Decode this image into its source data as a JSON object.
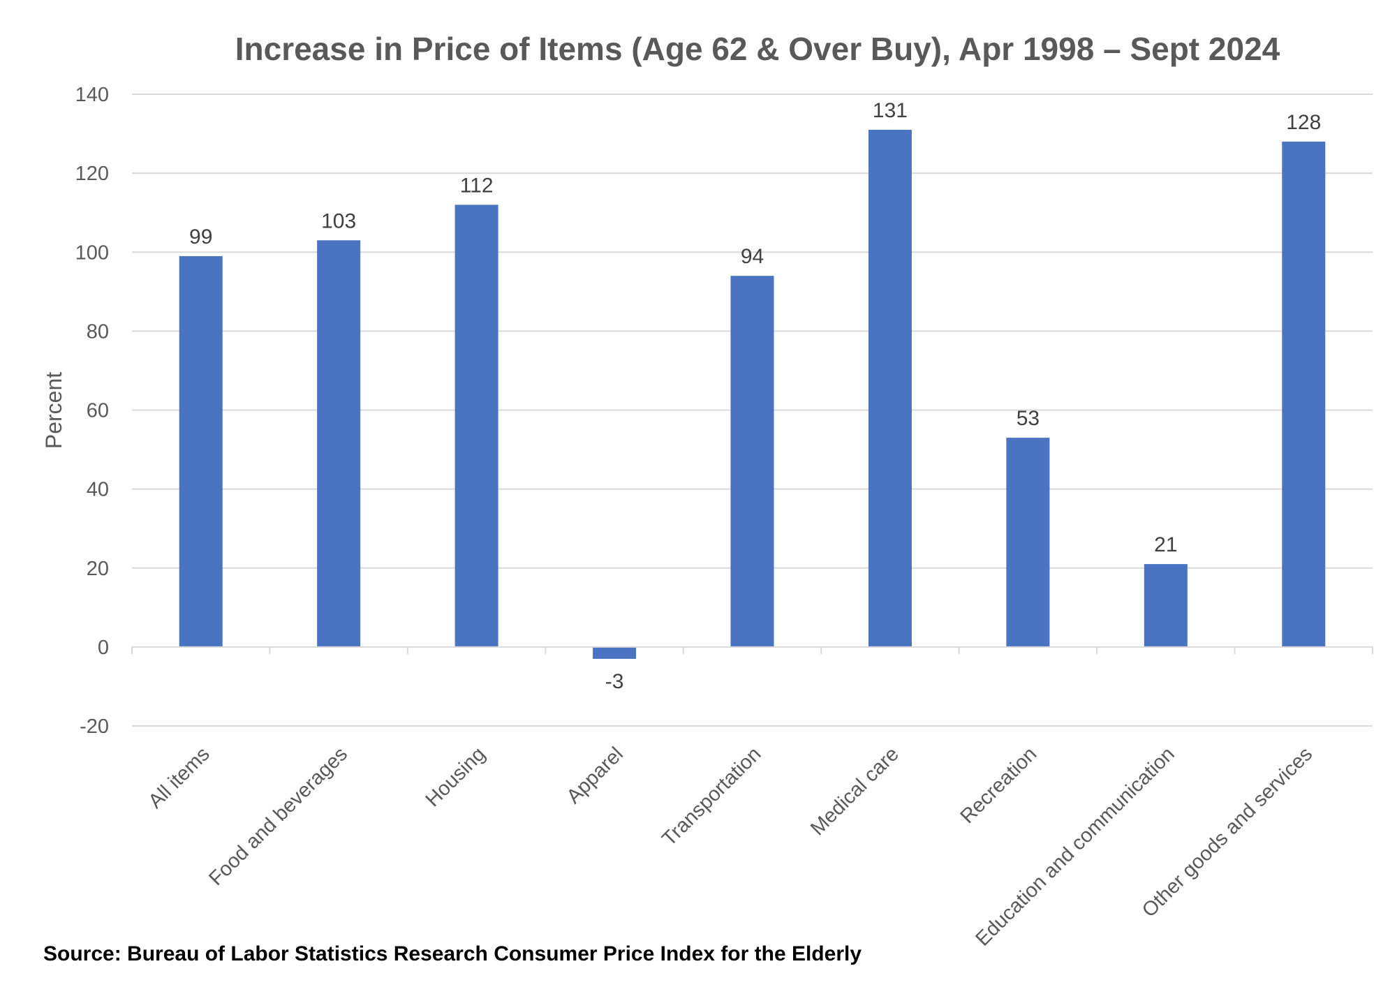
{
  "chart_data": {
    "type": "bar",
    "title": "Increase in Price of Items (Age 62 & Over Buy), Apr 1998 – Sept 2024",
    "xlabel": "",
    "ylabel": "Percent",
    "ylim": [
      -20,
      140
    ],
    "yticks": [
      -20,
      0,
      20,
      40,
      60,
      80,
      100,
      120,
      140
    ],
    "grid": true,
    "legend": "none",
    "categories": [
      "All items",
      "Food and beverages",
      "Housing",
      "Apparel",
      "Transportation",
      "Medical care",
      "Recreation",
      "Education and communication",
      "Other goods and services"
    ],
    "values": [
      99,
      103,
      112,
      -3,
      94,
      131,
      53,
      21,
      128
    ],
    "bar_color": "#4a73c1"
  },
  "source_note": "Source: Bureau of Labor Statistics Research Consumer Price Index for the Elderly"
}
